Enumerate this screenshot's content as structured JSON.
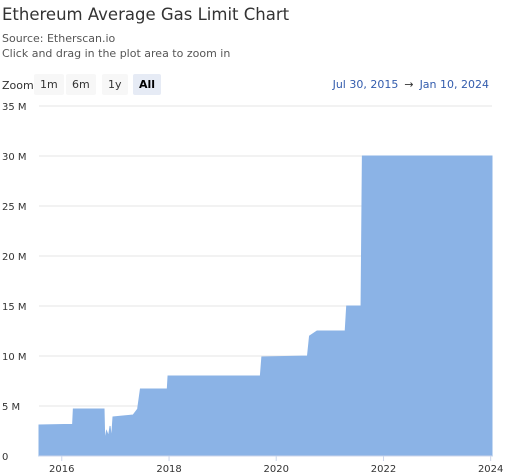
{
  "header": {
    "title": "Ethereum Average Gas Limit Chart",
    "source": "Source: Etherscan.io",
    "hint": "Click and drag in the plot area to zoom in"
  },
  "zoom": {
    "label": "Zoom",
    "buttons": [
      "1m",
      "6m",
      "1y",
      "All"
    ],
    "active": "All"
  },
  "range": {
    "from": "Jul 30, 2015",
    "arrow": "→",
    "to": "Jan 10, 2024"
  },
  "colors": {
    "area": "#8bb3e6",
    "grid": "#e6e6e6",
    "axis": "#ccd6eb"
  },
  "chart_data": {
    "type": "area",
    "title": "Ethereum Average Gas Limit Chart",
    "x_range": [
      "2015-07-30",
      "2024-01-10"
    ],
    "ylim": [
      0,
      35000000
    ],
    "y_ticks": [
      0,
      5000000,
      10000000,
      15000000,
      20000000,
      25000000,
      30000000,
      35000000
    ],
    "y_tick_labels": [
      "0",
      "5 M",
      "10 M",
      "15 M",
      "20 M",
      "25 M",
      "30 M",
      "35 M"
    ],
    "x_ticks": [
      "2016-01-01",
      "2018-01-01",
      "2020-01-01",
      "2022-01-01",
      "2024-01-01"
    ],
    "x_tick_labels": [
      "2016",
      "2018",
      "2020",
      "2022",
      "2024"
    ],
    "grid": true,
    "legend": "none",
    "series": [
      {
        "points": [
          [
            "2015-07-30",
            3100000
          ],
          [
            "2016-01-15",
            3150000
          ],
          [
            "2016-03-15",
            3150000
          ],
          [
            "2016-03-20",
            4700000
          ],
          [
            "2016-10-15",
            4700000
          ],
          [
            "2016-10-20",
            1500000
          ],
          [
            "2016-11-01",
            2500000
          ],
          [
            "2016-11-15",
            2000000
          ],
          [
            "2016-11-25",
            3000000
          ],
          [
            "2016-12-05",
            1700000
          ],
          [
            "2016-12-15",
            3900000
          ],
          [
            "2017-05-01",
            4100000
          ],
          [
            "2017-06-01",
            4700000
          ],
          [
            "2017-06-20",
            6700000
          ],
          [
            "2017-12-20",
            6700000
          ],
          [
            "2017-12-25",
            8000000
          ],
          [
            "2019-09-15",
            8000000
          ],
          [
            "2019-09-25",
            9900000
          ],
          [
            "2020-08-01",
            10000000
          ],
          [
            "2020-08-15",
            12000000
          ],
          [
            "2020-10-05",
            12500000
          ],
          [
            "2021-04-15",
            12500000
          ],
          [
            "2021-04-25",
            15000000
          ],
          [
            "2021-08-01",
            15000000
          ],
          [
            "2021-08-10",
            30000000
          ],
          [
            "2024-01-10",
            30000000
          ]
        ]
      }
    ]
  }
}
